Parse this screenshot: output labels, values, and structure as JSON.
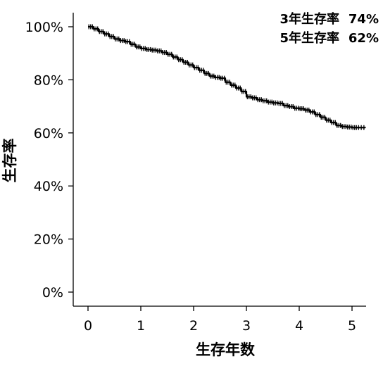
{
  "chart_data": {
    "type": "line",
    "title": "",
    "xlabel": "生存年数",
    "ylabel": "生存率",
    "xlim": [
      -0.3,
      5.3
    ],
    "ylim": [
      0,
      100
    ],
    "x_ticks": [
      0,
      1,
      2,
      3,
      4,
      5
    ],
    "x_tick_labels": [
      "0",
      "1",
      "2",
      "3",
      "4",
      "5"
    ],
    "y_ticks": [
      0,
      20,
      40,
      60,
      80,
      100
    ],
    "y_tick_labels": [
      "0%",
      "20%",
      "40%",
      "60%",
      "80%",
      "100%"
    ],
    "grid": false,
    "legend": "none",
    "line_color": "#000000",
    "series": [
      {
        "step": true,
        "censor_marks": true,
        "points": [
          [
            0.0,
            100
          ],
          [
            0.1,
            99.2
          ],
          [
            0.2,
            98.2
          ],
          [
            0.3,
            97.3
          ],
          [
            0.4,
            96.3
          ],
          [
            0.5,
            95.4
          ],
          [
            0.6,
            94.8
          ],
          [
            0.7,
            94.4
          ],
          [
            0.8,
            93.4
          ],
          [
            0.9,
            92.4
          ],
          [
            1.0,
            91.8
          ],
          [
            1.1,
            91.4
          ],
          [
            1.2,
            91.2
          ],
          [
            1.3,
            90.9
          ],
          [
            1.4,
            90.3
          ],
          [
            1.5,
            89.6
          ],
          [
            1.6,
            88.6
          ],
          [
            1.7,
            87.6
          ],
          [
            1.8,
            86.6
          ],
          [
            1.9,
            85.6
          ],
          [
            2.0,
            84.6
          ],
          [
            2.1,
            83.6
          ],
          [
            2.2,
            82.4
          ],
          [
            2.3,
            81.4
          ],
          [
            2.4,
            80.9
          ],
          [
            2.5,
            80.6
          ],
          [
            2.6,
            79.1
          ],
          [
            2.7,
            78.0
          ],
          [
            2.8,
            76.9
          ],
          [
            2.9,
            75.6
          ],
          [
            3.0,
            73.6
          ],
          [
            3.1,
            73.2
          ],
          [
            3.2,
            72.5
          ],
          [
            3.3,
            72.1
          ],
          [
            3.4,
            71.6
          ],
          [
            3.5,
            71.3
          ],
          [
            3.6,
            71.1
          ],
          [
            3.7,
            70.3
          ],
          [
            3.8,
            69.9
          ],
          [
            3.9,
            69.3
          ],
          [
            4.0,
            69.1
          ],
          [
            4.1,
            68.6
          ],
          [
            4.2,
            67.9
          ],
          [
            4.3,
            66.9
          ],
          [
            4.4,
            65.9
          ],
          [
            4.5,
            64.8
          ],
          [
            4.6,
            63.9
          ],
          [
            4.7,
            62.8
          ],
          [
            4.8,
            62.4
          ],
          [
            4.9,
            62.2
          ],
          [
            5.0,
            62.0
          ],
          [
            5.1,
            62.0
          ],
          [
            5.25,
            61.9
          ]
        ]
      }
    ],
    "annotations": [
      {
        "label": "3年生存率",
        "value": "74%"
      },
      {
        "label": "5年生存率",
        "value": "62%"
      }
    ]
  }
}
